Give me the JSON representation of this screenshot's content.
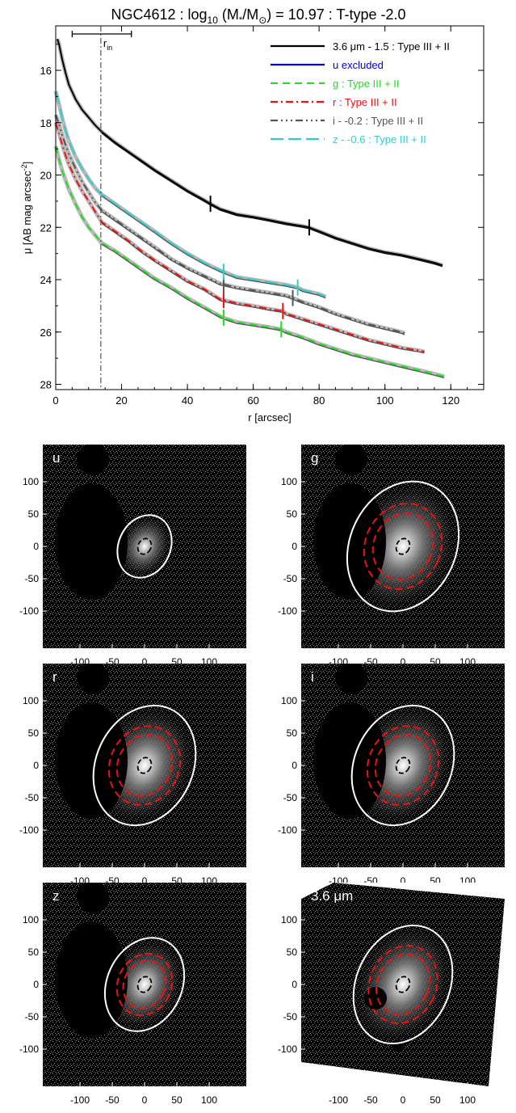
{
  "chart_data": [
    {
      "type": "line",
      "title_pre": "NGC4612 : log",
      "title_sub": "10",
      "title_mid": " (M",
      "title_star": "*",
      "title_slash": "/M",
      "title_sun": "⊙",
      "title_post": ") = 10.97 : T-type -2.0",
      "xlabel": "r [arcsec]",
      "ylabel_pre": "μ [AB mag arcsec",
      "ylabel_sup": "-2",
      "ylabel_post": "]",
      "xlim": [
        0,
        130
      ],
      "ylim": [
        28.2,
        14.3
      ],
      "y_inverted": true,
      "xticks": [
        0,
        20,
        40,
        60,
        80,
        100,
        120
      ],
      "yticks": [
        16,
        18,
        20,
        22,
        24,
        26,
        28
      ],
      "grid": false,
      "legend_position": "top-right",
      "r_in": {
        "label": "r",
        "label_sub": "in",
        "value": 13.7,
        "bar": [
          5,
          23
        ]
      },
      "series": [
        {
          "name": "3.6 μm - 1.5 : Type III + II",
          "color": "#000000",
          "dash": "",
          "x": [
            0.5,
            1,
            2,
            3,
            4,
            6,
            8,
            10,
            12,
            14,
            18,
            22,
            26,
            30,
            35,
            40,
            45,
            47,
            50,
            55,
            60,
            65,
            70,
            75,
            77,
            80,
            85,
            90,
            95,
            100,
            105,
            110,
            115,
            117.5
          ],
          "y": [
            14.8,
            15.0,
            15.6,
            16.1,
            16.55,
            17.1,
            17.5,
            17.8,
            18.1,
            18.35,
            18.75,
            19.1,
            19.45,
            19.8,
            20.2,
            20.6,
            20.95,
            21.1,
            21.3,
            21.5,
            21.6,
            21.72,
            21.85,
            21.95,
            22.0,
            22.15,
            22.4,
            22.6,
            22.8,
            22.95,
            23.05,
            23.2,
            23.35,
            23.45
          ],
          "breaks": [
            47,
            77
          ]
        },
        {
          "name": "u excluded",
          "color": "#0000dd",
          "dash": "",
          "x": [],
          "y": []
        },
        {
          "name": "g : Type III + II",
          "color": "#22dd22",
          "dash": "9,6",
          "x": [
            0,
            1,
            2,
            3,
            4,
            6,
            8,
            10,
            12,
            14,
            18,
            22,
            26,
            30,
            35,
            40,
            45,
            50,
            52,
            55,
            60,
            65,
            68.5,
            70,
            75,
            80,
            85,
            90,
            95,
            100,
            105,
            110,
            115,
            118
          ],
          "y": [
            18.9,
            19.4,
            19.85,
            20.2,
            20.55,
            21.1,
            21.6,
            22.0,
            22.3,
            22.6,
            22.9,
            23.25,
            23.6,
            23.95,
            24.3,
            24.7,
            25.05,
            25.4,
            25.5,
            25.62,
            25.72,
            25.82,
            25.9,
            26.0,
            26.2,
            26.45,
            26.65,
            26.85,
            27.0,
            27.15,
            27.3,
            27.45,
            27.6,
            27.7
          ],
          "breaks": [
            51,
            68.5
          ]
        },
        {
          "name": "r : Type III + II",
          "color": "#ee1111",
          "dash": "9,4,2,4",
          "x": [
            0,
            1,
            2,
            3,
            4,
            6,
            8,
            10,
            12,
            14,
            18,
            22,
            26,
            30,
            35,
            40,
            45,
            50,
            55,
            60,
            65,
            69,
            70,
            75,
            80,
            85,
            90,
            95,
            100,
            105,
            110,
            112
          ],
          "y": [
            18.0,
            18.4,
            18.85,
            19.25,
            19.6,
            20.15,
            20.6,
            21.0,
            21.4,
            21.8,
            22.15,
            22.5,
            22.9,
            23.25,
            23.65,
            24.05,
            24.35,
            24.75,
            24.9,
            25.0,
            25.12,
            25.2,
            25.3,
            25.5,
            25.7,
            25.9,
            26.1,
            26.3,
            26.45,
            26.6,
            26.7,
            26.75
          ],
          "breaks": [
            51,
            69
          ]
        },
        {
          "name": "i - -0.2 : Type III + II",
          "color": "#555555",
          "dash": "9,4,2,4,2,4,2,4",
          "x": [
            0,
            1,
            2,
            3,
            4,
            6,
            8,
            10,
            12,
            14,
            18,
            22,
            26,
            30,
            35,
            40,
            45,
            50,
            55,
            60,
            65,
            70,
            72,
            75,
            80,
            85,
            90,
            95,
            100,
            105,
            106
          ],
          "y": [
            17.7,
            18.05,
            18.5,
            18.85,
            19.2,
            19.75,
            20.25,
            20.65,
            21.05,
            21.35,
            21.7,
            22.05,
            22.4,
            22.75,
            23.2,
            23.55,
            23.85,
            24.15,
            24.3,
            24.4,
            24.5,
            24.6,
            24.7,
            24.85,
            25.05,
            25.3,
            25.5,
            25.7,
            25.85,
            26.0,
            26.05
          ],
          "breaks": [
            51,
            72
          ]
        },
        {
          "name": "z - -0.6 : Type III + II",
          "color": "#33cccc",
          "dash": "16,6",
          "x": [
            0,
            1,
            2,
            3,
            4,
            6,
            8,
            10,
            12,
            14,
            18,
            22,
            26,
            30,
            35,
            40,
            45,
            50,
            52,
            55,
            60,
            65,
            70,
            73.5,
            75,
            80,
            82
          ],
          "y": [
            16.8,
            17.3,
            17.85,
            18.3,
            18.7,
            19.3,
            19.75,
            20.15,
            20.5,
            20.75,
            21.1,
            21.45,
            21.8,
            22.15,
            22.6,
            23.0,
            23.35,
            23.65,
            23.75,
            23.9,
            24.0,
            24.1,
            24.2,
            24.3,
            24.4,
            24.55,
            24.65
          ],
          "breaks": [
            51,
            73.5
          ]
        }
      ]
    },
    {
      "type": "image",
      "panels": [
        {
          "label": "u",
          "label_unit": "",
          "xticks": [
            "-100",
            "-50",
            "0",
            "50",
            "100"
          ],
          "yticks": [
            "100",
            "50",
            "0",
            "-50",
            "-100"
          ],
          "isophote_major": 50,
          "isophote_minor": 40,
          "red_ellipses": false
        },
        {
          "label": "g",
          "label_unit": "",
          "xticks": [
            "-100",
            "-50",
            "0",
            "50",
            "100"
          ],
          "yticks": [
            "100",
            "50",
            "0",
            "-50",
            "-100"
          ],
          "isophote_major": 104,
          "isophote_minor": 82,
          "red_ellipses": true
        },
        {
          "label": "r",
          "label_unit": "",
          "xticks": [
            "-100",
            "-50",
            "0",
            "50",
            "100"
          ],
          "yticks": [
            "100",
            "50",
            "0",
            "-50",
            "-100"
          ],
          "isophote_major": 96,
          "isophote_minor": 75,
          "red_ellipses": true
        },
        {
          "label": "i",
          "label_unit": "",
          "xticks": [
            "-100",
            "-50",
            "0",
            "50",
            "100"
          ],
          "yticks": [
            "100",
            "50",
            "0",
            "-50",
            "-100"
          ],
          "isophote_major": 96,
          "isophote_minor": 75,
          "red_ellipses": true
        },
        {
          "label": "z",
          "label_unit": "",
          "xticks": [
            "-100",
            "-50",
            "0",
            "50",
            "100"
          ],
          "yticks": [
            "100",
            "50",
            "0",
            "-50",
            "-100"
          ],
          "isophote_major": 75,
          "isophote_minor": 58,
          "red_ellipses": true
        },
        {
          "label": "3.6 ",
          "label_unit": "μm",
          "xticks": [
            "-100",
            "-50",
            "0",
            "50",
            "100"
          ],
          "yticks": [
            "100",
            "50",
            "0",
            "-50",
            "-100"
          ],
          "isophote_major": 95,
          "isophote_minor": 72,
          "red_ellipses": true
        }
      ]
    }
  ]
}
